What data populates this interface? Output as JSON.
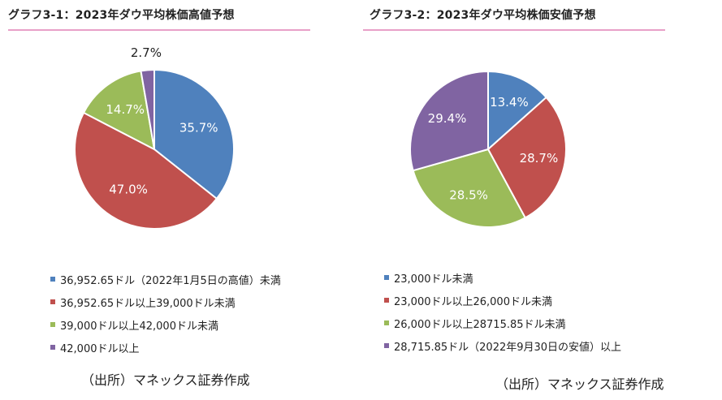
{
  "colors": {
    "blue": "#4f81bd",
    "red": "#c0504d",
    "green": "#9bbb59",
    "purple": "#8064a2"
  },
  "chart_data": [
    {
      "type": "pie",
      "title": "グラフ3-1：2023年ダウ平均株価高値予想",
      "categories": [
        "36,952.65ドル（2022年1月5日の高値）未満",
        "36,952.65ドル以上39,000ドル未満",
        "39,000ドル以上42,000ドル未満",
        "42,000ドル以上"
      ],
      "values": [
        35.7,
        47.0,
        14.7,
        2.7
      ],
      "labels": [
        "35.7%",
        "47.0%",
        "14.7%",
        "2.7%"
      ],
      "colors": [
        "#4f81bd",
        "#c0504d",
        "#9bbb59",
        "#8064a2"
      ],
      "legend_position": "bottom",
      "source": "（出所）マネックス証券作成"
    },
    {
      "type": "pie",
      "title": "グラフ3-2：2023年ダウ平均株価安値予想",
      "categories": [
        "23,000ドル未満",
        "23,000ドル以上26,000ドル未満",
        "26,000ドル以上28715.85ドル未満",
        "28,715.85ドル（2022年9月30日の安値）以上"
      ],
      "values": [
        13.4,
        28.7,
        28.5,
        29.4
      ],
      "labels": [
        "13.4%",
        "28.7%",
        "28.5%",
        "29.4%"
      ],
      "colors": [
        "#4f81bd",
        "#c0504d",
        "#9bbb59",
        "#8064a2"
      ],
      "legend_position": "bottom",
      "source": "（出所）マネックス証券作成"
    }
  ]
}
